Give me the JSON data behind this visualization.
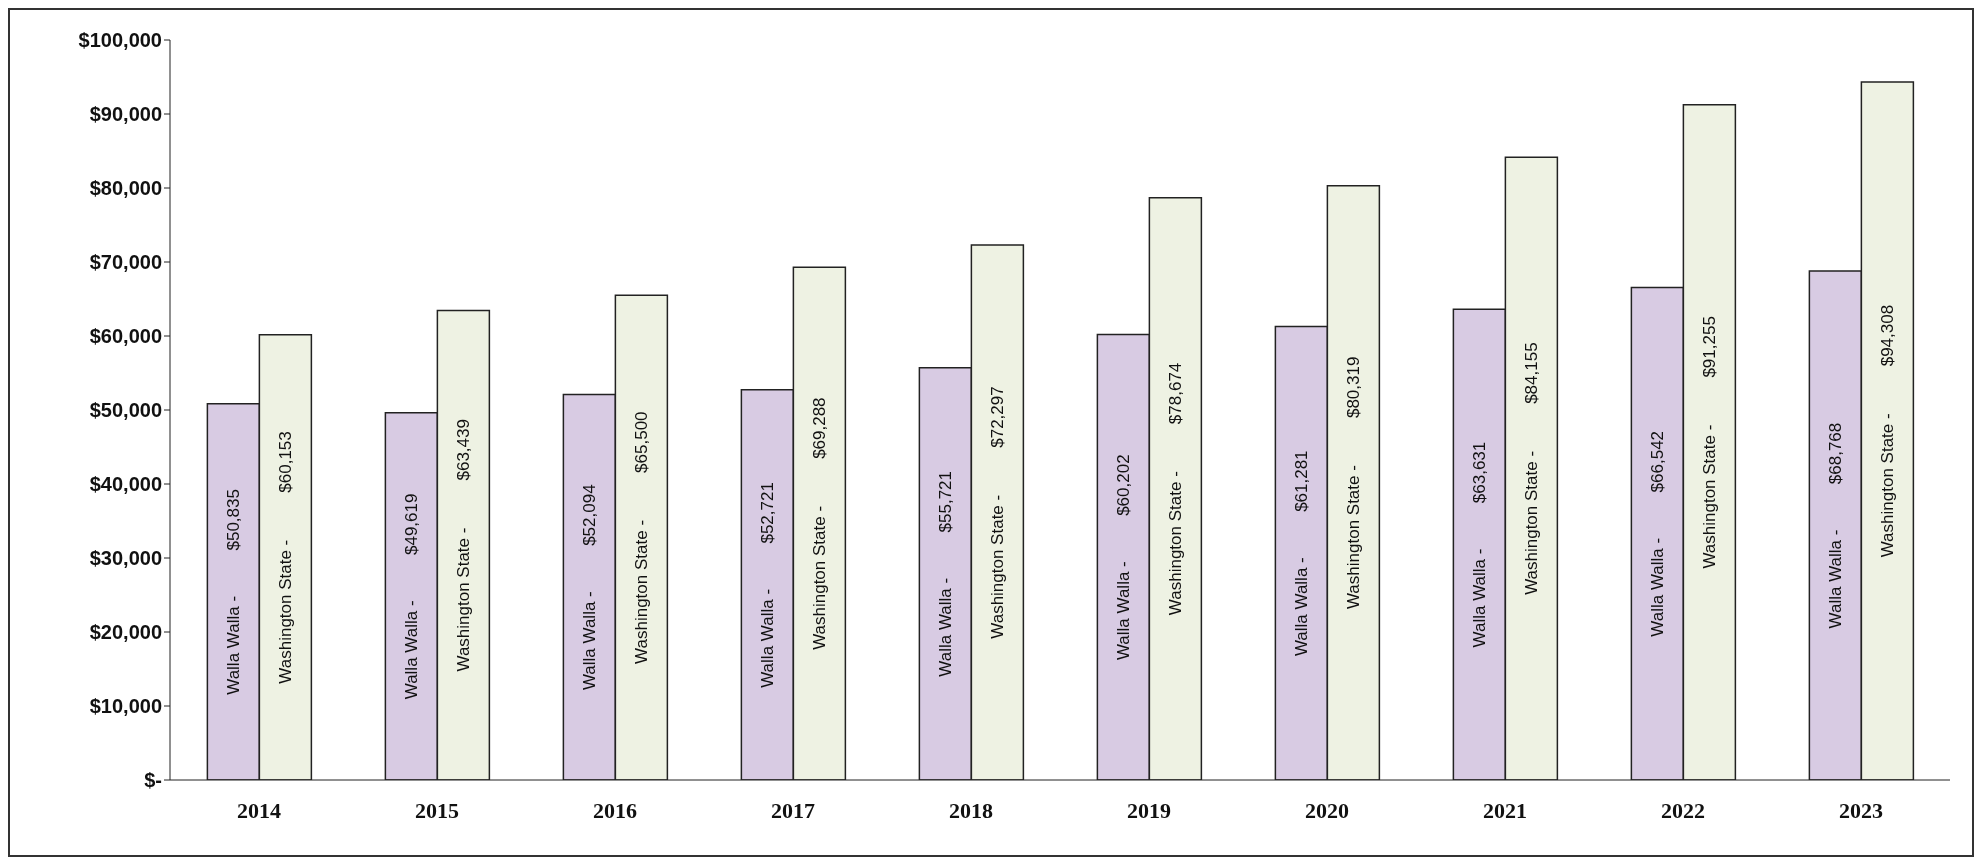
{
  "chart_data": {
    "type": "bar",
    "categories": [
      "2014",
      "2015",
      "2016",
      "2017",
      "2018",
      "2019",
      "2020",
      "2021",
      "2022",
      "2023"
    ],
    "series": [
      {
        "name": "Walla Walla -",
        "color": "#d8cbe3",
        "values": [
          50835,
          49619,
          52094,
          52721,
          55721,
          60202,
          61281,
          63631,
          66542,
          68768
        ],
        "value_labels": [
          "$50,835",
          "$49,619",
          "$52,094",
          "$52,721",
          "$55,721",
          "$60,202",
          "$61,281",
          "$63,631",
          "$66,542",
          "$68,768"
        ]
      },
      {
        "name": "Washington State -",
        "color": "#eef2e3",
        "values": [
          60153,
          63439,
          65500,
          69288,
          72297,
          78674,
          80319,
          84155,
          91255,
          94308
        ],
        "value_labels": [
          "$60,153",
          "$63,439",
          "$65,500",
          "$69,288",
          "$72,297",
          "$78,674",
          "$80,319",
          "$84,155",
          "$91,255",
          "$94,308"
        ]
      }
    ],
    "ylim": [
      0,
      100000
    ],
    "yticks": [
      {
        "value": 0,
        "label": "$-"
      },
      {
        "value": 10000,
        "label": "$10,000"
      },
      {
        "value": 20000,
        "label": "$20,000"
      },
      {
        "value": 30000,
        "label": "$30,000"
      },
      {
        "value": 40000,
        "label": "$40,000"
      },
      {
        "value": 50000,
        "label": "$50,000"
      },
      {
        "value": 60000,
        "label": "$60,000"
      },
      {
        "value": 70000,
        "label": "$70,000"
      },
      {
        "value": 80000,
        "label": "$80,000"
      },
      {
        "value": 90000,
        "label": "$90,000"
      },
      {
        "value": 100000,
        "label": "$100,000"
      }
    ],
    "grid": false,
    "legend": false
  }
}
